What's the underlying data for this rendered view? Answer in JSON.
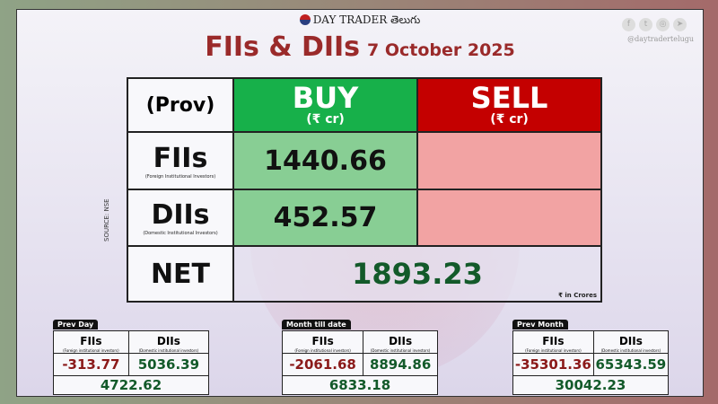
{
  "brand": {
    "name": "DAY TRADER తెలుగు",
    "handle": "@daytradertelugu",
    "social_icons": [
      "facebook-icon",
      "twitter-icon",
      "instagram-icon",
      "telegram-icon"
    ]
  },
  "title": {
    "main": "FIIs & DIIs",
    "date": "7 October 2025"
  },
  "table": {
    "corner": "(Prov)",
    "buy_label": "BUY",
    "buy_unit": "(₹ cr)",
    "sell_label": "SELL",
    "sell_unit": "(₹ cr)",
    "fii": {
      "label": "FIIs",
      "sub": "(Foreign Institutional Investors)",
      "buy": "1440.66",
      "sell": ""
    },
    "dii": {
      "label": "DIIs",
      "sub": "(Domestic Institutional Investors)",
      "buy": "452.57",
      "sell": ""
    },
    "net": {
      "label": "NET",
      "value": "1893.23",
      "unit": "₹ in Crores"
    }
  },
  "source": "SOURCE: NSE",
  "colors": {
    "buy": "#17b04a",
    "sell": "#c40000",
    "positive": "#135a2a",
    "negative": "#8b1a1a"
  },
  "summaries": [
    {
      "tag": "Prev Day",
      "fii_label": "FIIs",
      "fii_sub": "(Foreign institutional investors)",
      "dii_label": "DIIs",
      "dii_sub": "(Domestic institutional investors)",
      "fii": "-313.77",
      "dii": "5036.39",
      "net": "4722.62"
    },
    {
      "tag": "Month till date",
      "fii_label": "FIIs",
      "fii_sub": "(Foreign institutional investors)",
      "dii_label": "DIIs",
      "dii_sub": "(Domestic institutional investors)",
      "fii": "-2061.68",
      "dii": "8894.86",
      "net": "6833.18"
    },
    {
      "tag": "Prev Month",
      "fii_label": "FIIs",
      "fii_sub": "(Foreign institutional investors)",
      "dii_label": "DIIs",
      "dii_sub": "(Domestic institutional investors)",
      "fii": "-35301.36",
      "dii": "65343.59",
      "net": "30042.23"
    }
  ]
}
